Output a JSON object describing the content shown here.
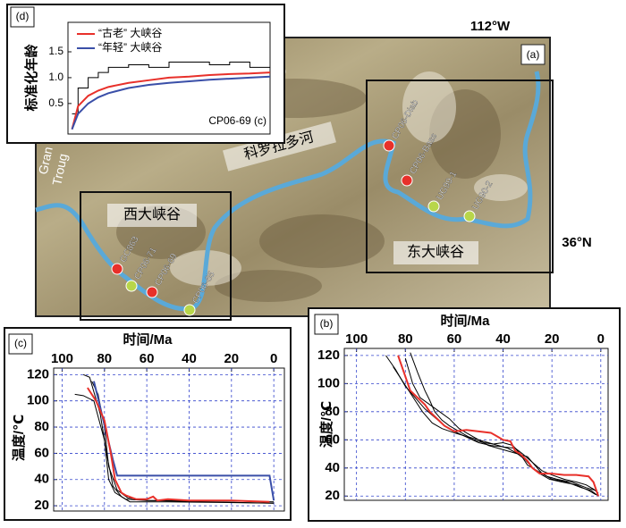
{
  "map": {
    "panel_label": "(a)",
    "lon_label": "112°W",
    "lat_label": "36°N",
    "river_label": "科罗拉多河",
    "trough_labels": [
      "Gran",
      "Troug"
    ],
    "regions": [
      "西大峡谷",
      "东大峡谷"
    ],
    "samples": [
      {
        "label": "CP06-Diab",
        "color": "#e8302a"
      },
      {
        "label": "CP06-Bass",
        "color": "#e8302a"
      },
      {
        "label": "UG99-1",
        "color": "#b8d64a"
      },
      {
        "label": "UG90-2",
        "color": "#b8d64a"
      },
      {
        "label": "GC863",
        "color": "#e8302a"
      },
      {
        "label": "CP06-71",
        "color": "#b8d64a"
      },
      {
        "label": "CP06-69",
        "color": "#e8302a"
      },
      {
        "label": "CP06-65",
        "color": "#b8d64a"
      }
    ]
  },
  "chart_data": [
    {
      "type": "line",
      "panel_label": "(d)",
      "y_label": "标准化年龄",
      "annotation": "CP06-69 (c)",
      "x": [
        0.02,
        0.05,
        0.1,
        0.15,
        0.2,
        0.3,
        0.4,
        0.5,
        0.6,
        0.7,
        0.8,
        0.9,
        1.0
      ],
      "xlim": [
        0,
        1
      ],
      "ylim": [
        -0.09,
        2.07
      ],
      "yticks": [
        0.5,
        {
          "value": 1,
          "label": "1.0"
        },
        1.5
      ],
      "series": [
        {
          "color": "#000000",
          "step": true,
          "values": [
            0.3,
            0.8,
            1.0,
            1.1,
            1.2,
            1.25,
            1.2,
            1.3,
            1.3,
            1.25,
            1.3,
            1.2,
            1.2
          ]
        },
        {
          "name": "“古老” 大峡谷",
          "color": "#e8302a",
          "values": [
            0,
            0.45,
            0.65,
            0.75,
            0.82,
            0.9,
            0.95,
            1.0,
            1.02,
            1.05,
            1.07,
            1.08,
            1.1
          ]
        },
        {
          "name": "“年轻” 大峡谷",
          "color": "#3a4fa8",
          "values": [
            0,
            0.3,
            0.5,
            0.62,
            0.7,
            0.8,
            0.86,
            0.9,
            0.93,
            0.96,
            0.98,
            1.0,
            1.02
          ]
        }
      ]
    },
    {
      "type": "line",
      "panel_label": "(c)",
      "x_label": "时间/Ma",
      "y_label": "温度/℃",
      "xlim": [
        104,
        -5
      ],
      "ylim": [
        16,
        125
      ],
      "xticks": [
        100,
        80,
        60,
        40,
        20,
        0
      ],
      "yticks": [
        20,
        40,
        60,
        80,
        100,
        120
      ],
      "grid": true,
      "series": [
        {
          "color": "#000000",
          "x": [
            94,
            90,
            85,
            80,
            78,
            75,
            70,
            60,
            0
          ],
          "values": [
            105,
            104,
            100,
            70,
            40,
            30,
            25,
            24,
            22
          ]
        },
        {
          "color": "#000000",
          "x": [
            90,
            87,
            82,
            79,
            76,
            72,
            68,
            50,
            0
          ],
          "values": [
            120,
            118,
            90,
            60,
            35,
            27,
            23,
            23,
            22
          ]
        },
        {
          "color": "#000000",
          "x": [
            86,
            83,
            80,
            78,
            74,
            69,
            60,
            30,
            0
          ],
          "values": [
            115,
            105,
            80,
            50,
            32,
            26,
            24,
            24,
            23
          ]
        },
        {
          "color": "#3a4fa8",
          "x": [
            85,
            82,
            79,
            76,
            74,
            40,
            10,
            2,
            0
          ],
          "values": [
            115,
            95,
            75,
            55,
            43,
            43,
            43,
            43,
            24
          ]
        },
        {
          "color": "#e8302a",
          "x": [
            88,
            84,
            80,
            77,
            75,
            72,
            70,
            65,
            60,
            57,
            55,
            50,
            40,
            20,
            2
          ],
          "values": [
            110,
            100,
            85,
            60,
            40,
            30,
            28,
            25,
            25,
            27,
            24,
            25,
            24,
            24,
            23
          ]
        }
      ]
    },
    {
      "type": "line",
      "panel_label": "(b)",
      "x_label": "时间/Ma",
      "y_label": "温度/℃",
      "xlim": [
        105,
        -3
      ],
      "ylim": [
        17,
        125
      ],
      "xticks": [
        100,
        80,
        60,
        40,
        20,
        0
      ],
      "yticks": [
        20,
        40,
        60,
        80,
        100,
        120
      ],
      "grid": true,
      "series": [
        {
          "color": "#000000",
          "x": [
            88,
            84,
            80,
            76,
            72,
            68,
            64,
            60,
            55,
            50,
            45,
            40,
            35,
            32,
            28,
            24,
            20,
            15,
            10,
            6,
            3,
            1
          ],
          "values": [
            120,
            110,
            98,
            90,
            82,
            76,
            70,
            66,
            62,
            58,
            56,
            55,
            54,
            50,
            44,
            38,
            35,
            32,
            30,
            28,
            25,
            22
          ]
        },
        {
          "color": "#000000",
          "x": [
            80,
            77,
            74,
            70,
            66,
            62,
            58,
            54,
            50,
            46,
            42,
            38,
            34,
            30,
            27,
            24,
            20,
            14,
            8,
            4,
            1
          ],
          "values": [
            118,
            100,
            90,
            85,
            80,
            75,
            68,
            64,
            60,
            56,
            54,
            52,
            50,
            48,
            42,
            36,
            32,
            30,
            26,
            24,
            20
          ]
        },
        {
          "color": "#000000",
          "x": [
            85,
            82,
            79,
            76,
            73,
            69,
            65,
            60,
            56,
            52,
            48,
            44,
            40,
            36,
            33,
            30,
            26,
            22,
            18,
            12,
            6,
            2
          ],
          "values": [
            112,
            104,
            96,
            88,
            80,
            72,
            68,
            65,
            63,
            60,
            58,
            57,
            58,
            56,
            50,
            42,
            38,
            34,
            32,
            30,
            26,
            24
          ]
        },
        {
          "color": "#000000",
          "x": [
            78,
            75,
            72,
            70,
            68,
            65,
            62,
            58,
            54,
            50,
            46,
            42,
            38,
            34,
            31,
            28,
            25,
            21,
            16,
            10,
            5,
            2
          ],
          "values": [
            122,
            108,
            95,
            88,
            80,
            74,
            70,
            66,
            62,
            60,
            58,
            56,
            54,
            50,
            46,
            40,
            36,
            32,
            30,
            28,
            24,
            21
          ]
        },
        {
          "color": "#e8302a",
          "x": [
            83,
            80,
            78,
            75,
            72,
            70,
            67,
            64,
            60,
            55,
            50,
            45,
            42,
            40,
            37,
            35,
            33,
            30,
            28,
            25,
            20,
            15,
            10,
            5,
            3,
            1
          ],
          "values": [
            120,
            105,
            95,
            90,
            85,
            80,
            75,
            70,
            66,
            67,
            66,
            65,
            62,
            60,
            59,
            52,
            50,
            45,
            40,
            36,
            36,
            35,
            35,
            34,
            30,
            20
          ]
        }
      ]
    }
  ]
}
